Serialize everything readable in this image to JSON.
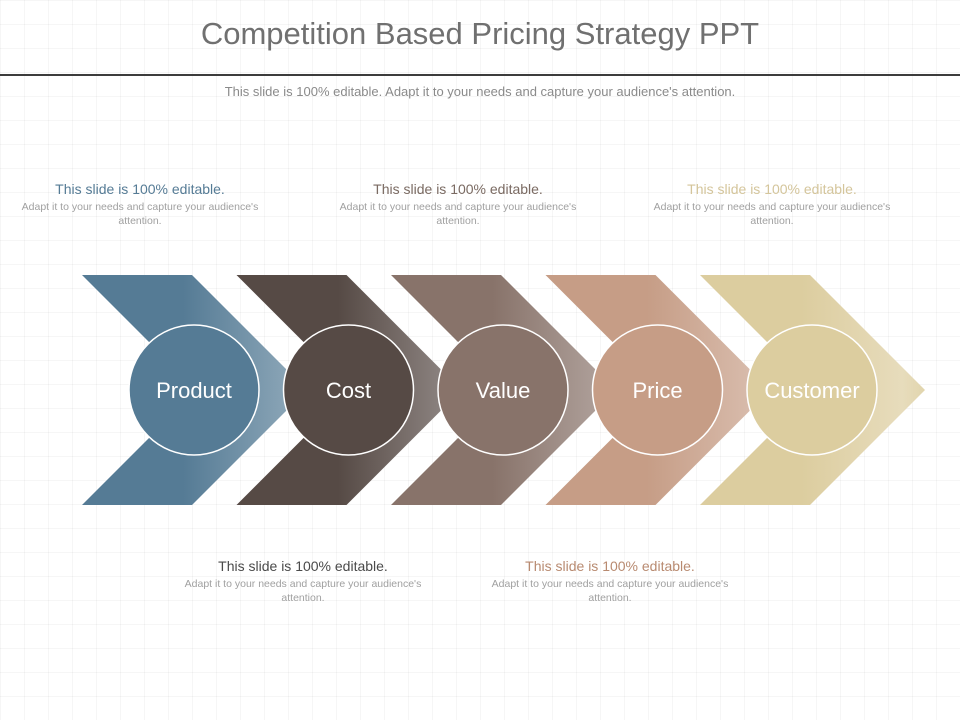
{
  "slide": {
    "title": "Competition Based Pricing Strategy PPT",
    "subtitle": "This slide is 100% editable. Adapt it to your needs and capture your audience's attention."
  },
  "steps": [
    {
      "label": "Product",
      "color": "#557b95"
    },
    {
      "label": "Cost",
      "color": "#564a45"
    },
    {
      "label": "Value",
      "color": "#88736a"
    },
    {
      "label": "Price",
      "color": "#c69d86"
    },
    {
      "label": "Customer",
      "color": "#dccd9f"
    }
  ],
  "callouts": [
    {
      "heading": "This slide is 100% editable.",
      "body": "Adapt it to your needs and capture your audience's attention.",
      "color": "#557b95"
    },
    {
      "heading": "This slide is 100% editable.",
      "body": "Adapt it to your needs and capture your audience's attention.",
      "color": "#7a6a62"
    },
    {
      "heading": "This slide is 100% editable.",
      "body": "Adapt it to your needs and capture your audience's attention.",
      "color": "#d4c59b"
    },
    {
      "heading": "This slide is 100% editable.",
      "body": "Adapt it to your needs and capture your audience's attention.",
      "color": "#4a4a4a"
    },
    {
      "heading": "This slide is 100% editable.",
      "body": "Adapt it to your needs and capture your audience's attention.",
      "color": "#b88a70"
    }
  ]
}
